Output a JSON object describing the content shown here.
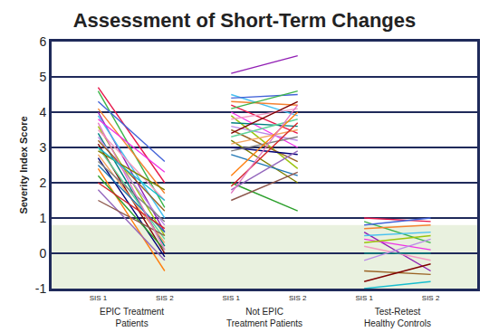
{
  "chart_data": {
    "type": "line",
    "title": "Assessment of Short-Term Changes",
    "y_label": "Severity Index Score",
    "categories": [
      "SIS 1",
      "SIS 2",
      "SIS 1",
      "SIS 2",
      "SIS 1",
      "SIS 2"
    ],
    "groups": [
      {
        "label": [
          "EPIC Treatment",
          "Patients"
        ],
        "pairs": [
          [
            4.7,
            2.0
          ],
          [
            4.6,
            1.3
          ],
          [
            4.3,
            2.6
          ],
          [
            4.1,
            1.7
          ],
          [
            4.0,
            0.6
          ],
          [
            3.9,
            1.0
          ],
          [
            3.8,
            2.3
          ],
          [
            3.6,
            0.5
          ],
          [
            3.5,
            1.5
          ],
          [
            3.4,
            0.2
          ],
          [
            3.3,
            0.8
          ],
          [
            3.2,
            1.2
          ],
          [
            3.1,
            0.0
          ],
          [
            3.0,
            0.4
          ],
          [
            2.9,
            1.8
          ],
          [
            2.8,
            0.3
          ],
          [
            2.7,
            -0.1
          ],
          [
            2.6,
            0.9
          ],
          [
            2.5,
            0.6
          ],
          [
            2.4,
            -0.5
          ],
          [
            2.2,
            0.1
          ],
          [
            2.0,
            0.7
          ],
          [
            1.8,
            -0.2
          ],
          [
            1.5,
            0.5
          ],
          [
            3.7,
            0.1
          ],
          [
            3.0,
            1.5
          ]
        ],
        "colors": [
          "#e6194b",
          "#3cb44b",
          "#4363d8",
          "#f58231",
          "#911eb4",
          "#46c0f0",
          "#f032e6",
          "#9bc40c",
          "#f49ac2",
          "#008080",
          "#b98be6",
          "#9a6324",
          "#800000",
          "#5fd39a",
          "#808000",
          "#f4a460",
          "#000075",
          "#808080",
          "#1f77b4",
          "#ff7f0e",
          "#2ca02c",
          "#d62728",
          "#9467bd",
          "#8c564b",
          "#e377c2",
          "#17becf"
        ]
      },
      {
        "label": [
          "Not EPIC",
          "Treatment Patients"
        ],
        "pairs": [
          [
            5.1,
            5.6
          ],
          [
            4.5,
            3.9
          ],
          [
            4.4,
            4.5
          ],
          [
            4.3,
            4.2
          ],
          [
            4.2,
            3.4
          ],
          [
            4.1,
            4.6
          ],
          [
            4.0,
            3.0
          ],
          [
            3.9,
            2.4
          ],
          [
            3.8,
            4.1
          ],
          [
            3.7,
            3.6
          ],
          [
            3.6,
            3.2
          ],
          [
            3.5,
            2.6
          ],
          [
            3.4,
            4.3
          ],
          [
            3.3,
            3.8
          ],
          [
            3.2,
            2.0
          ],
          [
            3.1,
            3.5
          ],
          [
            3.0,
            2.8
          ],
          [
            2.9,
            3.3
          ],
          [
            2.8,
            2.2
          ],
          [
            2.2,
            4.0
          ],
          [
            2.0,
            1.2
          ],
          [
            1.9,
            3.7
          ],
          [
            1.8,
            2.9
          ],
          [
            1.5,
            2.3
          ],
          [
            1.7,
            4.2
          ]
        ],
        "colors": [
          "#911eb4",
          "#46c0f0",
          "#4363d8",
          "#f58231",
          "#e6194b",
          "#3cb44b",
          "#f032e6",
          "#9bc40c",
          "#f49ac2",
          "#008080",
          "#b98be6",
          "#9a6324",
          "#800000",
          "#5fd39a",
          "#808000",
          "#f4a460",
          "#000075",
          "#808080",
          "#1f77b4",
          "#ff7f0e",
          "#2ca02c",
          "#d62728",
          "#9467bd",
          "#8c564b",
          "#e377c2"
        ]
      },
      {
        "label": [
          "Test-Retest",
          "Healthy Controls"
        ],
        "pairs": [
          [
            1.0,
            0.9
          ],
          [
            0.9,
            0.3
          ],
          [
            0.8,
            1.0
          ],
          [
            0.7,
            0.8
          ],
          [
            0.6,
            -0.5
          ],
          [
            0.5,
            0.6
          ],
          [
            0.4,
            0.1
          ],
          [
            0.3,
            0.5
          ],
          [
            0.2,
            -0.2
          ],
          [
            0.0,
            0.0
          ],
          [
            -0.2,
            0.4
          ],
          [
            -0.5,
            -0.6
          ],
          [
            -0.8,
            -0.3
          ],
          [
            -1.0,
            -0.8
          ]
        ],
        "colors": [
          "#e6194b",
          "#3cb44b",
          "#4363d8",
          "#f58231",
          "#911eb4",
          "#46c0f0",
          "#f032e6",
          "#9bc40c",
          "#f49ac2",
          "#008080",
          "#b98be6",
          "#9a6324",
          "#800000",
          "#17becf"
        ]
      }
    ],
    "normal_range": [
      -1,
      0.8
    ],
    "ylim": [
      -1,
      6
    ],
    "yticks": [
      -1,
      0,
      1,
      2,
      3,
      4,
      5,
      6
    ],
    "grid": true
  }
}
